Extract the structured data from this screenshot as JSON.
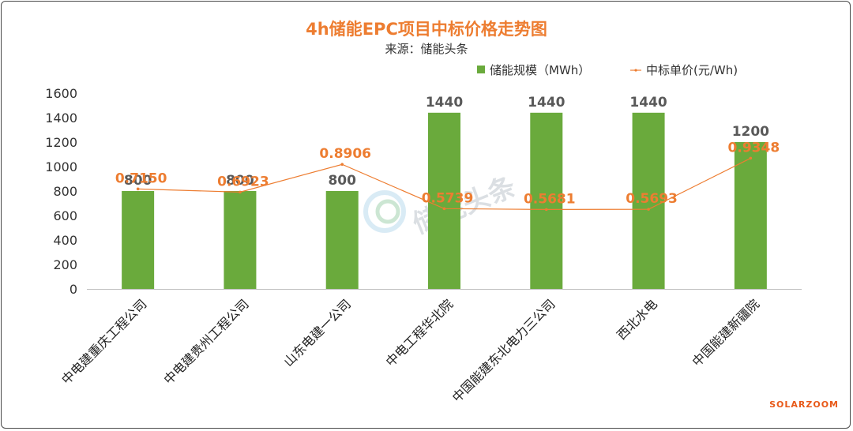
{
  "chart_data": {
    "type": "bar+line",
    "title": "4h储能EPC项目中标价格走势图",
    "subtitle": "来源：储能头条",
    "categories": [
      "中电建重庆工程公司",
      "中电建贵州工程公司",
      "山东电建一公司",
      "中电工程华北院",
      "中国能建东北电力三公司",
      "西北水电",
      "中国能建新疆院"
    ],
    "series": [
      {
        "name": "储能规模（MWh）",
        "type": "bar",
        "axis": "left",
        "values": [
          800,
          800,
          800,
          1440,
          1440,
          1440,
          1200
        ],
        "labels": [
          "800",
          "800",
          "800",
          "1440",
          "1440",
          "1440",
          "1200"
        ],
        "color": "#6aaa3c"
      },
      {
        "name": "中标单价(元/Wh)",
        "type": "line",
        "axis": "secondary",
        "values": [
          0.715,
          0.6923,
          0.8906,
          0.5739,
          0.5681,
          0.5693,
          0.9348
        ],
        "labels": [
          "0.7150",
          "0.6923",
          "0.8906",
          "0.5739",
          "0.5681",
          "0.5693",
          "0.9348"
        ],
        "color": "#ed7d31"
      }
    ],
    "yticks": [
      "0",
      "200",
      "400",
      "600",
      "800",
      "1000",
      "1200",
      "1400",
      "1600"
    ],
    "ylim": [
      0,
      1600
    ],
    "secondary_ylim": [
      0,
      1.4
    ],
    "legend_position": "top-right",
    "grid": false,
    "title_color": "#ed7d31"
  },
  "watermark": "储能头条",
  "brand": "SOLARZOOM"
}
